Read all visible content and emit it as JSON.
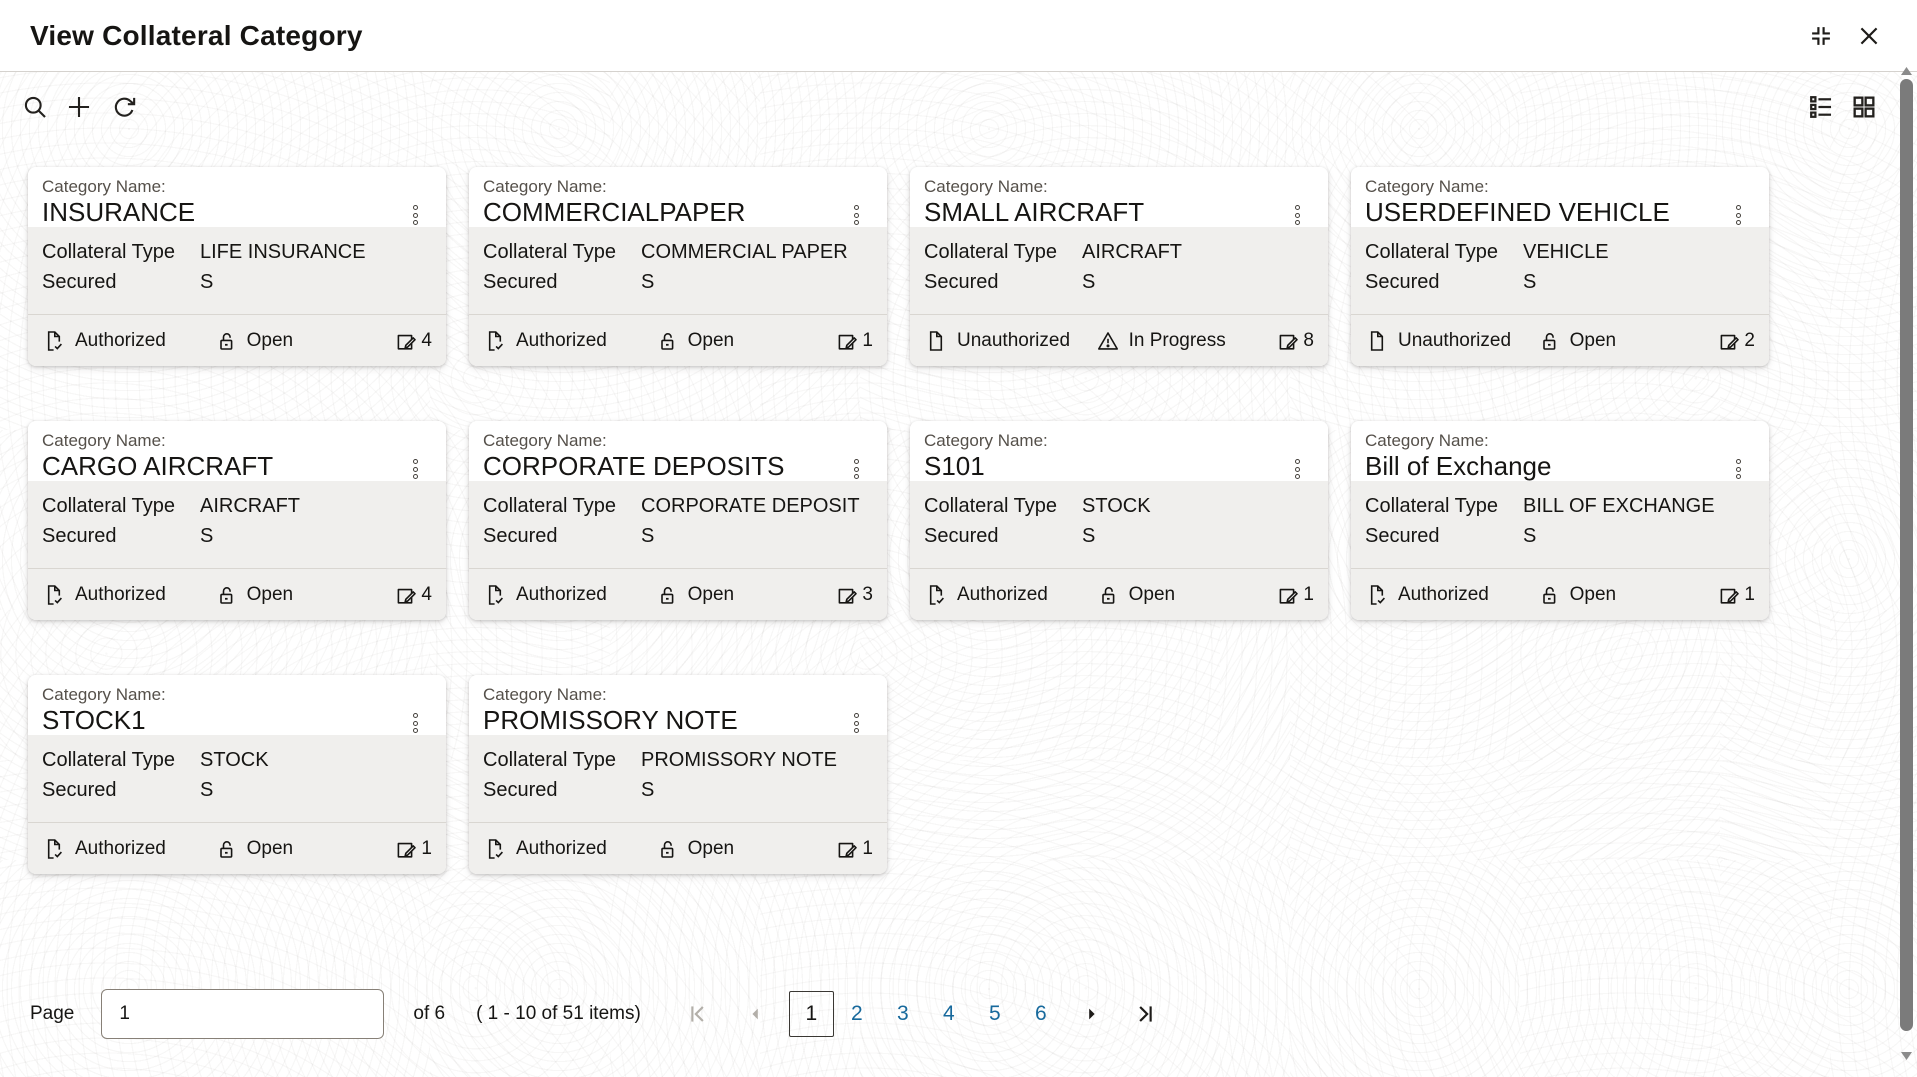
{
  "window": {
    "title": "View Collateral Category"
  },
  "toolbar": {
    "left_icons": [
      "search-icon",
      "add-icon",
      "refresh-icon"
    ],
    "right_icons": [
      "list-view-icon",
      "grid-view-icon"
    ]
  },
  "card_labels": {
    "category_name": "Category Name:",
    "collateral_type": "Collateral Type",
    "secured": "Secured"
  },
  "cards": [
    {
      "category_name": "INSURANCE",
      "collateral_type": "LIFE INSURANCE",
      "secured_flag": "S",
      "authorization_status": "Authorized",
      "authorization_icon": "document-check-icon",
      "record_status": "Open",
      "record_status_icon": "unlock-icon",
      "edit_icon": "edit-count-icon",
      "edit_count": "4"
    },
    {
      "category_name": "COMMERCIALPAPER",
      "collateral_type": "COMMERCIAL PAPER",
      "secured_flag": "S",
      "authorization_status": "Authorized",
      "authorization_icon": "document-check-icon",
      "record_status": "Open",
      "record_status_icon": "unlock-icon",
      "edit_icon": "edit-count-icon",
      "edit_count": "1"
    },
    {
      "category_name": "SMALL AIRCRAFT",
      "collateral_type": "AIRCRAFT",
      "secured_flag": "S",
      "authorization_status": "Unauthorized",
      "authorization_icon": "document-icon",
      "record_status": "In Progress",
      "record_status_icon": "warning-icon",
      "edit_icon": "edit-count-icon",
      "edit_count": "8"
    },
    {
      "category_name": "USERDEFINED VEHICLE",
      "collateral_type": "VEHICLE",
      "secured_flag": "S",
      "authorization_status": "Unauthorized",
      "authorization_icon": "document-icon",
      "record_status": "Open",
      "record_status_icon": "unlock-icon",
      "edit_icon": "edit-count-icon",
      "edit_count": "2"
    },
    {
      "category_name": "CARGO AIRCRAFT",
      "collateral_type": "AIRCRAFT",
      "secured_flag": "S",
      "authorization_status": "Authorized",
      "authorization_icon": "document-check-icon",
      "record_status": "Open",
      "record_status_icon": "unlock-icon",
      "edit_icon": "edit-count-icon",
      "edit_count": "4"
    },
    {
      "category_name": "CORPORATE DEPOSITS",
      "collateral_type": "CORPORATE DEPOSIT",
      "secured_flag": "S",
      "authorization_status": "Authorized",
      "authorization_icon": "document-check-icon",
      "record_status": "Open",
      "record_status_icon": "unlock-icon",
      "edit_icon": "edit-count-icon",
      "edit_count": "3"
    },
    {
      "category_name": "S101",
      "collateral_type": "STOCK",
      "secured_flag": "S",
      "authorization_status": "Authorized",
      "authorization_icon": "document-check-icon",
      "record_status": "Open",
      "record_status_icon": "unlock-icon",
      "edit_icon": "edit-count-icon",
      "edit_count": "1"
    },
    {
      "category_name": "Bill of Exchange",
      "collateral_type": "BILL OF EXCHANGE",
      "secured_flag": "S",
      "authorization_status": "Authorized",
      "authorization_icon": "document-check-icon",
      "record_status": "Open",
      "record_status_icon": "unlock-icon",
      "edit_icon": "edit-count-icon",
      "edit_count": "1"
    },
    {
      "category_name": "STOCK1",
      "collateral_type": "STOCK",
      "secured_flag": "S",
      "authorization_status": "Authorized",
      "authorization_icon": "document-check-icon",
      "record_status": "Open",
      "record_status_icon": "unlock-icon",
      "edit_icon": "edit-count-icon",
      "edit_count": "1"
    },
    {
      "category_name": "PROMISSORY NOTE",
      "collateral_type": "PROMISSORY NOTE",
      "secured_flag": "S",
      "authorization_status": "Authorized",
      "authorization_icon": "document-check-icon",
      "record_status": "Open",
      "record_status_icon": "unlock-icon",
      "edit_icon": "edit-count-icon",
      "edit_count": "1"
    }
  ],
  "pagination": {
    "page_label": "Page",
    "page_input_value": "1",
    "total_pages_label": "of 6",
    "items_summary": "( 1 - 10 of 51 items)",
    "current_page": "1",
    "pages": [
      "1",
      "2",
      "3",
      "4",
      "5",
      "6"
    ],
    "first_icon": "first-page-icon",
    "previous_icon": "previous-page-icon",
    "next_icon": "next-page-icon",
    "last_icon": "last-page-icon"
  },
  "colors": {
    "text": "#161513",
    "link_blue": "#17699c",
    "disabled_gray": "#b3afa9",
    "card_section_bg": "#f0efed"
  }
}
